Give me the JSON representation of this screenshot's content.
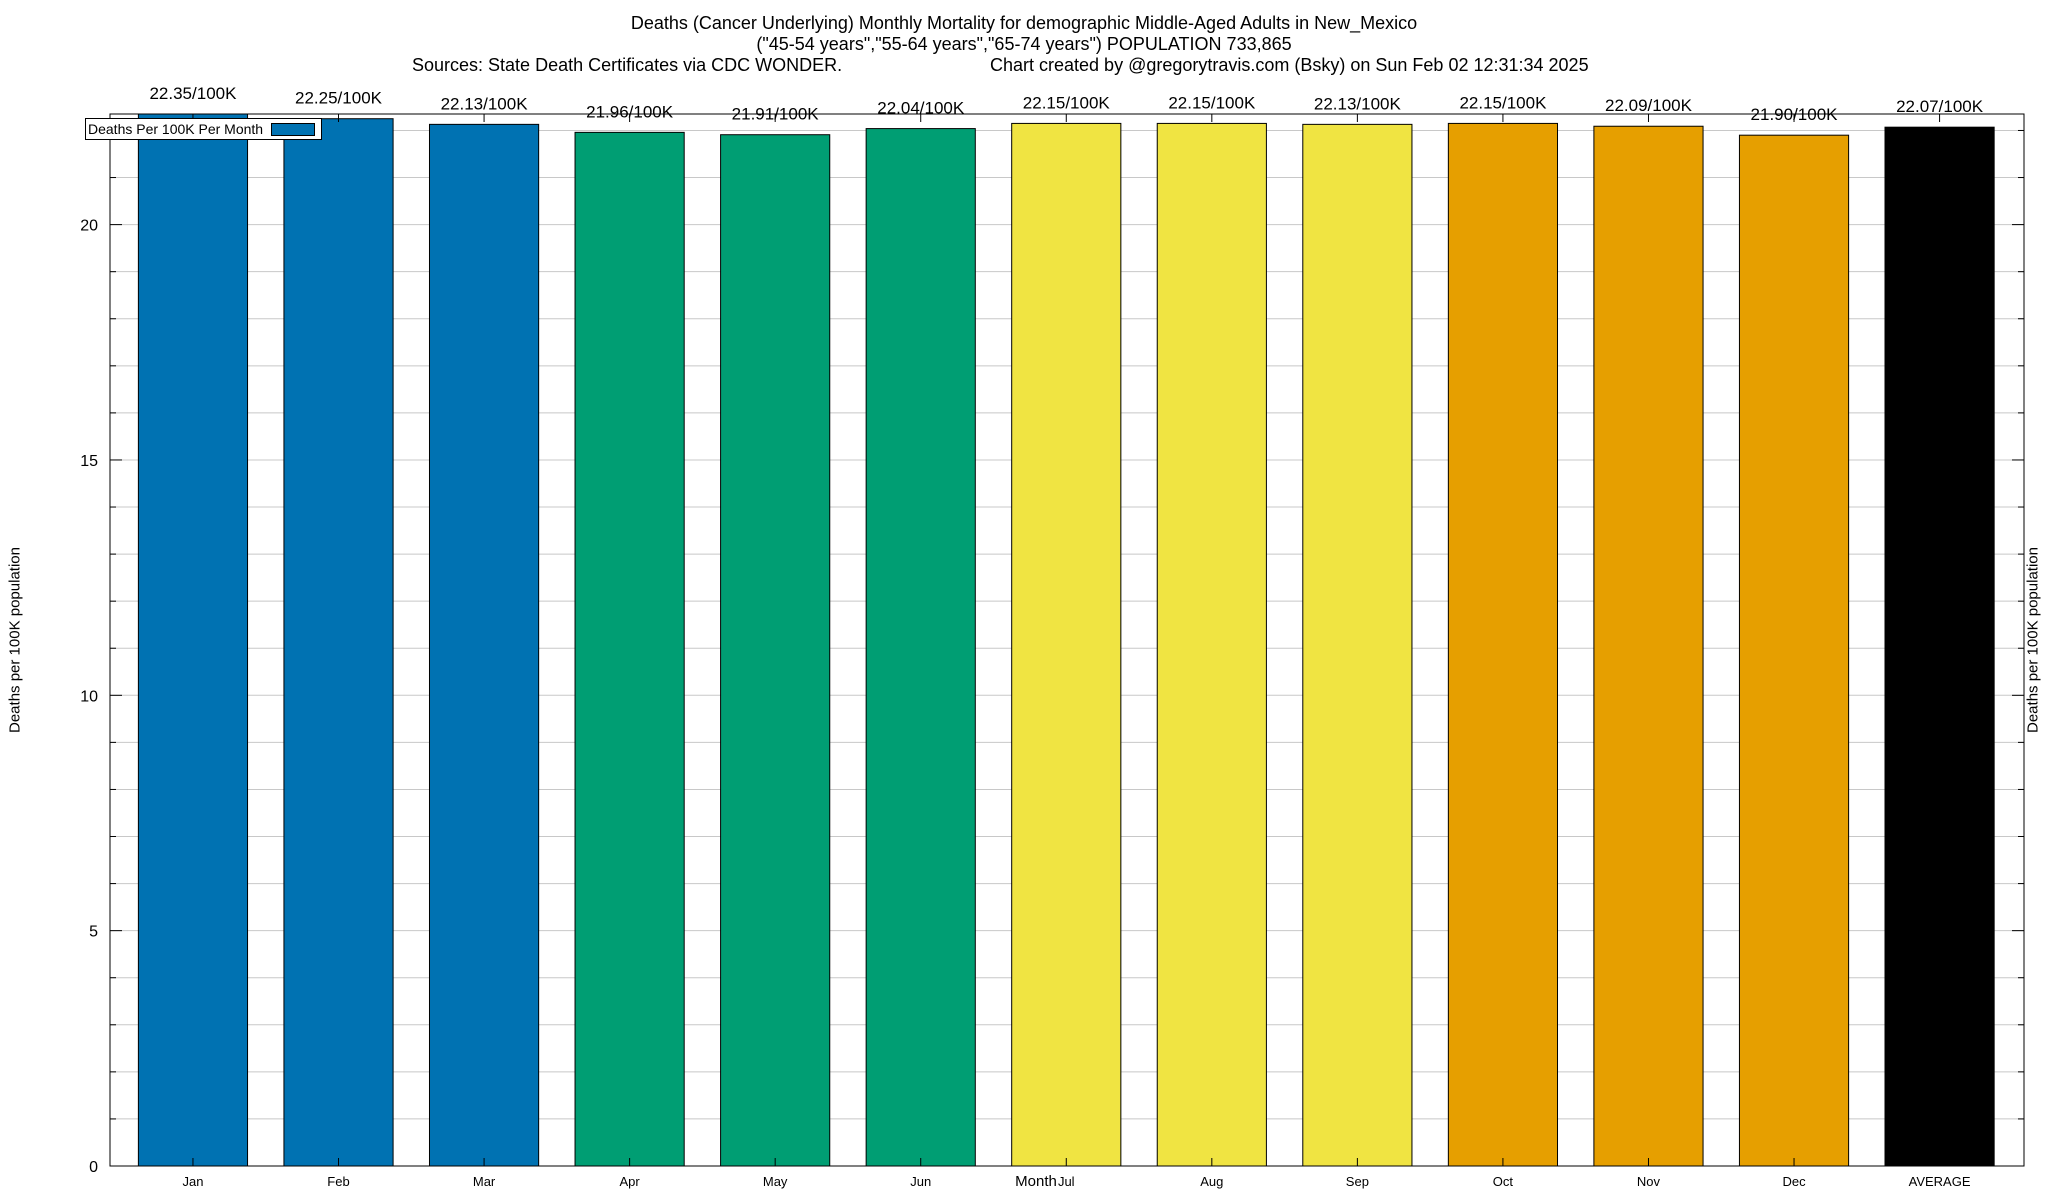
{
  "chart_data": {
    "type": "bar",
    "title": "Deaths (Cancer Underlying) Monthly Mortality for demographic Middle-Aged Adults in New_Mexico",
    "subtitle": "(\"45-54 years\",\"55-64 years\",\"65-74 years\") POPULATION 733,865",
    "sources": "Sources: State Death Certificates via CDC WONDER.",
    "credit": "Chart created by @gregorytravis.com (Bsky) on Sun Feb 02 12:31:34 2025",
    "xlabel": "Month",
    "ylabel": "Deaths per 100K population",
    "ylabel_right": "Deaths per 100K population",
    "legend": "Deaths Per 100K Per Month",
    "legend_color": "#0072b2",
    "ylim": [
      0,
      22.35
    ],
    "yticks": [
      0,
      5,
      10,
      15,
      20
    ],
    "categories": [
      "Jan",
      "Feb",
      "Mar",
      "Apr",
      "May",
      "Jun",
      "Jul",
      "Aug",
      "Sep",
      "Oct",
      "Nov",
      "Dec",
      "AVERAGE"
    ],
    "values": [
      22.35,
      22.25,
      22.13,
      21.96,
      21.91,
      22.04,
      22.15,
      22.15,
      22.13,
      22.15,
      22.09,
      21.9,
      22.07
    ],
    "data_labels": [
      "22.35/100K",
      "22.25/100K",
      "22.13/100K",
      "21.96/100K",
      "21.91/100K",
      "22.04/100K",
      "22.15/100K",
      "22.15/100K",
      "22.13/100K",
      "22.15/100K",
      "22.09/100K",
      "21.90/100K",
      "22.07/100K"
    ],
    "colors": [
      "#0072b2",
      "#0072b2",
      "#0072b2",
      "#009e73",
      "#009e73",
      "#009e73",
      "#f0e442",
      "#f0e442",
      "#f0e442",
      "#e69f00",
      "#e69f00",
      "#e69f00",
      "#000000"
    ]
  }
}
